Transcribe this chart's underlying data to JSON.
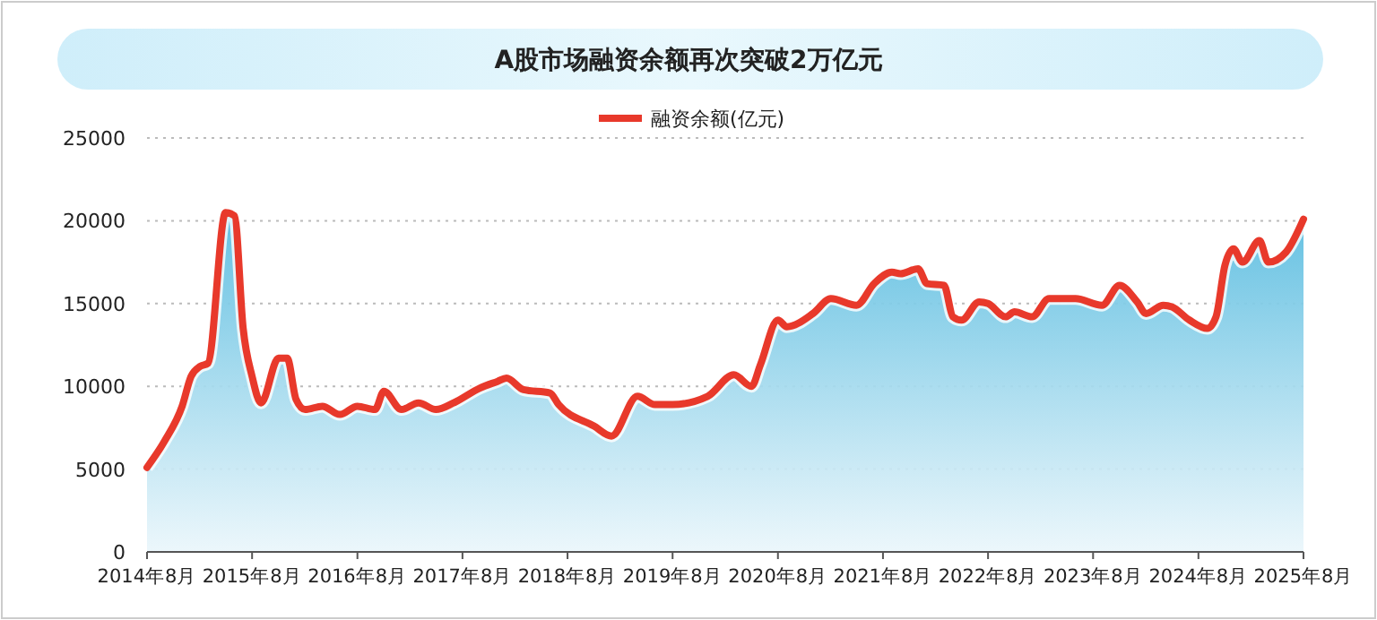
{
  "chart_data": {
    "type": "area",
    "title": "A股市场融资余额再次突破2万亿元",
    "legend": "top",
    "grid": "y",
    "x": [
      "2014-08",
      "2014-10",
      "2014-12",
      "2015-01",
      "2015-02",
      "2015-03",
      "2015-05",
      "2015-06",
      "2015-07",
      "2015-08",
      "2015-09",
      "2015-11",
      "2015-12",
      "2016-01",
      "2016-02",
      "2016-04",
      "2016-06",
      "2016-08",
      "2016-10",
      "2016-11",
      "2017-01",
      "2017-03",
      "2017-05",
      "2017-07",
      "2017-10",
      "2017-12",
      "2018-01",
      "2018-03",
      "2018-06",
      "2018-07",
      "2018-11",
      "2019-01",
      "2019-04",
      "2019-06",
      "2019-08",
      "2019-12",
      "2020-03",
      "2020-05",
      "2020-06",
      "2020-08",
      "2020-09",
      "2020-12",
      "2021-02",
      "2021-05",
      "2021-07",
      "2021-09",
      "2021-10",
      "2021-12",
      "2022-01",
      "2022-03",
      "2022-04",
      "2022-05",
      "2022-07",
      "2022-08",
      "2022-10",
      "2022-11",
      "2023-01",
      "2023-03",
      "2023-06",
      "2023-09",
      "2023-11",
      "2024-01",
      "2024-02",
      "2024-04",
      "2024-05",
      "2024-07",
      "2024-09",
      "2024-10",
      "2024-11",
      "2024-12",
      "2025-01",
      "2025-03",
      "2025-04",
      "2025-06",
      "2025-08"
    ],
    "series": [
      {
        "name": "融资余额(亿元)",
        "color": "#e8392b",
        "values": [
          5100,
          6700,
          8800,
          10600,
          11200,
          11400,
          20500,
          20300,
          13500,
          10600,
          9000,
          11700,
          11700,
          9200,
          8600,
          8800,
          8300,
          8800,
          8600,
          9700,
          8600,
          9000,
          8600,
          9000,
          9900,
          10300,
          10500,
          9800,
          9600,
          8900,
          7600,
          7000,
          9400,
          8900,
          8900,
          9400,
          10700,
          10000,
          11300,
          14000,
          13600,
          14400,
          15300,
          14900,
          16200,
          16900,
          16800,
          17100,
          16200,
          16100,
          14200,
          14000,
          15100,
          15000,
          14200,
          14500,
          14200,
          15300,
          15300,
          14900,
          16100,
          15100,
          14400,
          14900,
          14800,
          14000,
          13500,
          14200,
          17300,
          18300,
          17500,
          18800,
          17500,
          18100,
          20100
        ]
      }
    ],
    "xlim": [
      "2014-08",
      "2025-08"
    ],
    "xticks": [
      {
        "value": "2014-08",
        "label": "2014年8月"
      },
      {
        "value": "2015-08",
        "label": "2015年8月"
      },
      {
        "value": "2016-08",
        "label": "2016年8月"
      },
      {
        "value": "2017-08",
        "label": "2017年8月"
      },
      {
        "value": "2018-08",
        "label": "2018年8月"
      },
      {
        "value": "2019-08",
        "label": "2019年8月"
      },
      {
        "value": "2020-08",
        "label": "2020年8月"
      },
      {
        "value": "2021-08",
        "label": "2021年8月"
      },
      {
        "value": "2022-08",
        "label": "2022年8月"
      },
      {
        "value": "2023-08",
        "label": "2023年8月"
      },
      {
        "value": "2024-08",
        "label": "2024年8月"
      },
      {
        "value": "2025-08",
        "label": "2025年8月"
      }
    ],
    "ylim": [
      0,
      25000
    ],
    "yticks": [
      0,
      5000,
      10000,
      15000,
      20000,
      25000
    ]
  }
}
